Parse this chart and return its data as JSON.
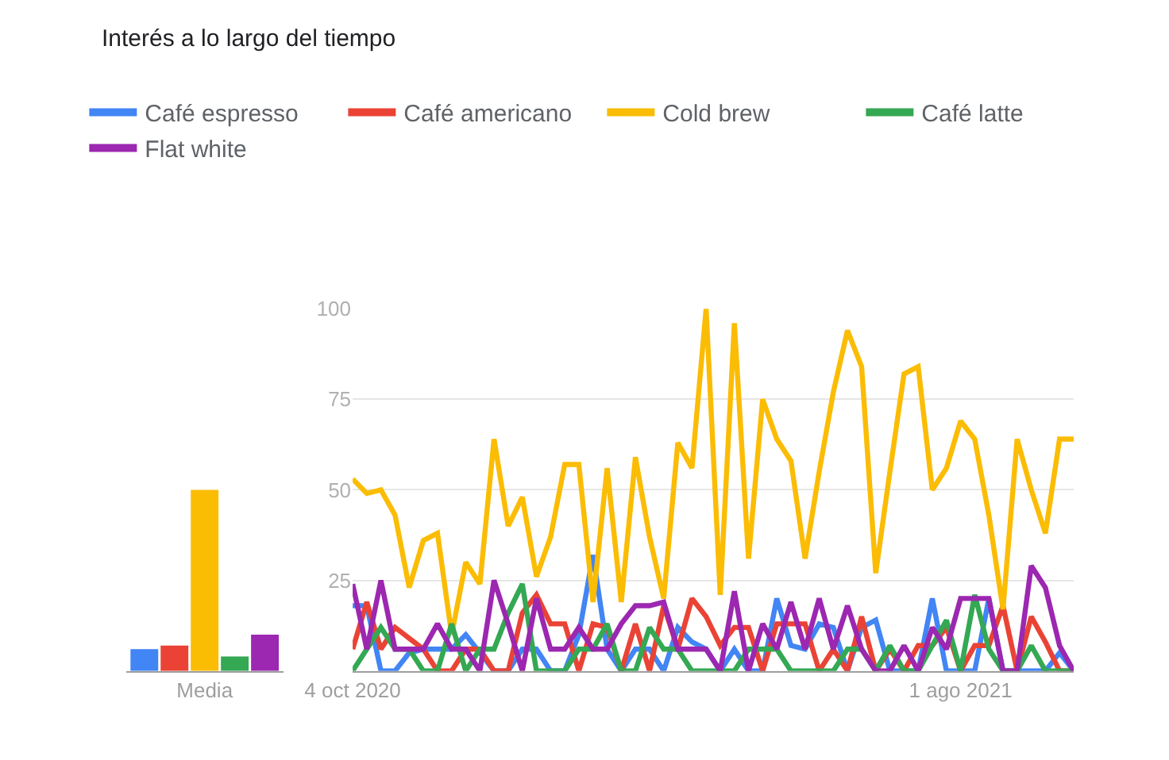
{
  "chart_data": [
    {
      "type": "bar",
      "title": "Interés a lo largo del tiempo",
      "categories": [
        "Media"
      ],
      "ylim": [
        0,
        100
      ],
      "tick_labels": "x",
      "series": [
        {
          "color": "#4285f4",
          "values": [
            6
          ]
        },
        {
          "color": "#ea4335",
          "values": [
            7
          ]
        },
        {
          "color": "#fbbc04",
          "values": [
            50
          ]
        },
        {
          "color": "#34a853",
          "values": [
            4
          ]
        },
        {
          "color": "#9c27b0",
          "values": [
            10
          ]
        }
      ]
    },
    {
      "type": "line",
      "legend": "top left",
      "grid": "y",
      "marker": "none",
      "line_style": "solid",
      "x": [
        "2020-10-04",
        "2020-10-11",
        "2020-10-18",
        "2020-10-25",
        "2020-11-01",
        "2020-11-08",
        "2020-11-15",
        "2020-11-22",
        "2020-11-29",
        "2020-12-06",
        "2020-12-13",
        "2020-12-20",
        "2020-12-27",
        "2021-01-03",
        "2021-01-10",
        "2021-01-17",
        "2021-01-24",
        "2021-01-31",
        "2021-02-07",
        "2021-02-14",
        "2021-02-21",
        "2021-02-28",
        "2021-03-07",
        "2021-03-14",
        "2021-03-21",
        "2021-03-28",
        "2021-04-04",
        "2021-04-11",
        "2021-04-18",
        "2021-04-25",
        "2021-05-02",
        "2021-05-09",
        "2021-05-16",
        "2021-05-23",
        "2021-05-30",
        "2021-06-06",
        "2021-06-13",
        "2021-06-20",
        "2021-06-27",
        "2021-07-04",
        "2021-07-11",
        "2021-07-18",
        "2021-07-25",
        "2021-08-01",
        "2021-08-08",
        "2021-08-15",
        "2021-08-22",
        "2021-08-29",
        "2021-09-05",
        "2021-09-12",
        "2021-09-19",
        "2021-09-26"
      ],
      "xlim": [
        "2020-10-04",
        "2021-09-26"
      ],
      "xticks": [
        {
          "value": "2020-10-04",
          "label": "4 oct 2020"
        },
        {
          "value": "2021-08-01",
          "label": "1 ago 2021"
        }
      ],
      "ylim": [
        0,
        100
      ],
      "yticks": [
        {
          "value": 0,
          "label": null
        },
        25,
        50,
        75,
        100
      ],
      "series": [
        {
          "name": "Café espresso",
          "color": "#4285f4",
          "values": [
            18,
            18,
            0,
            0,
            5,
            6,
            6,
            6,
            10,
            5,
            0,
            0,
            6,
            6,
            0,
            0,
            10,
            32,
            6,
            0,
            6,
            6,
            0,
            12,
            8,
            6,
            0,
            6,
            0,
            0,
            20,
            7,
            6,
            13,
            12,
            0,
            12,
            14,
            0,
            0,
            0,
            20,
            0,
            0,
            0,
            20,
            0,
            0,
            0,
            0,
            5,
            0
          ]
        },
        {
          "name": "Café americano",
          "color": "#ea4335",
          "values": [
            6,
            19,
            6,
            12,
            9,
            6,
            0,
            0,
            6,
            6,
            0,
            0,
            16,
            21,
            13,
            13,
            0,
            13,
            12,
            0,
            13,
            0,
            18,
            6,
            20,
            15,
            7,
            12,
            12,
            0,
            13,
            13,
            13,
            0,
            6,
            0,
            15,
            0,
            6,
            0,
            7,
            7,
            12,
            0,
            7,
            7,
            18,
            0,
            15,
            8,
            0,
            0
          ]
        },
        {
          "name": "Cold brew",
          "color": "#fbbc04",
          "values": [
            53,
            49,
            50,
            43,
            23,
            36,
            38,
            10,
            30,
            24,
            64,
            40,
            48,
            26,
            37,
            57,
            57,
            19,
            56,
            19,
            59,
            37,
            20,
            63,
            56,
            100,
            21,
            96,
            31,
            75,
            64,
            58,
            31,
            55,
            77,
            94,
            84,
            27,
            55,
            82,
            84,
            50,
            56,
            69,
            64,
            43,
            17,
            64,
            50,
            38,
            64,
            64
          ]
        },
        {
          "name": "Café latte",
          "color": "#34a853",
          "values": [
            0,
            6,
            12,
            6,
            6,
            0,
            0,
            13,
            0,
            6,
            6,
            16,
            24,
            0,
            0,
            0,
            6,
            6,
            13,
            0,
            0,
            12,
            6,
            6,
            0,
            0,
            0,
            0,
            6,
            6,
            6,
            0,
            0,
            0,
            0,
            6,
            6,
            0,
            7,
            0,
            0,
            7,
            14,
            0,
            21,
            6,
            0,
            0,
            7,
            0,
            0,
            0
          ]
        },
        {
          "name": "Flat white",
          "color": "#9c27b0",
          "values": [
            24,
            6,
            25,
            6,
            6,
            6,
            13,
            6,
            6,
            0,
            25,
            13,
            0,
            20,
            6,
            6,
            12,
            6,
            6,
            13,
            18,
            18,
            19,
            6,
            6,
            6,
            0,
            22,
            0,
            13,
            6,
            19,
            6,
            20,
            6,
            18,
            6,
            0,
            0,
            7,
            0,
            12,
            6,
            20,
            20,
            20,
            0,
            0,
            29,
            23,
            7,
            0
          ]
        }
      ]
    }
  ]
}
